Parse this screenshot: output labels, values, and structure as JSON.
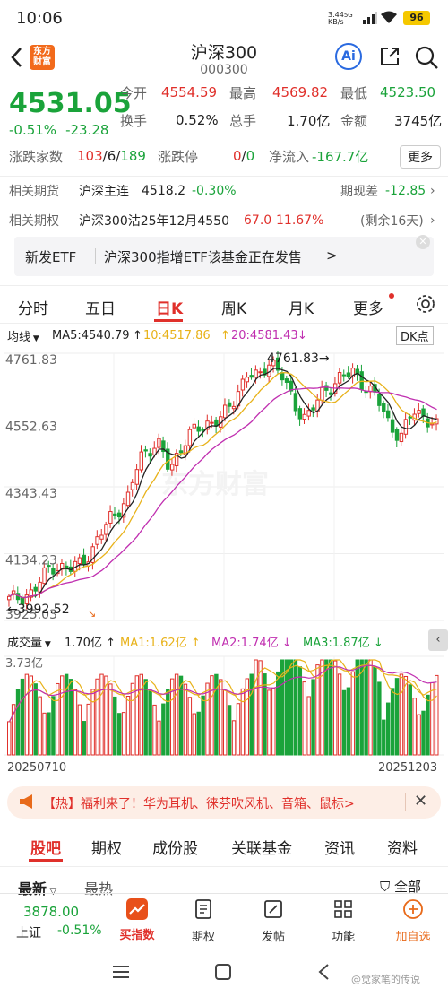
{
  "status": {
    "time": "10:06",
    "net_speed_top": "3.44",
    "net_speed_bottom": "KB/s",
    "net_type": "5G",
    "battery": "96"
  },
  "header": {
    "logo_line1": "东方",
    "logo_line2": "财富",
    "title": "沪深300",
    "code": "000300",
    "ai_label": "Ai"
  },
  "quote": {
    "price": "4531.05",
    "change_pct": "-0.51%",
    "change": "-23.28",
    "open_label": "今开",
    "open": "4554.59",
    "high_label": "最高",
    "high": "4569.82",
    "low_label": "最低",
    "low": "4523.50",
    "turnover_label": "换手",
    "turnover": "0.52%",
    "volume_label": "总手",
    "volume": "1.70亿",
    "amount_label": "金额",
    "amount": "3745亿",
    "breadth_label": "涨跌家数",
    "breadth_up": "103",
    "breadth_flat": "/6/",
    "breadth_down": "189",
    "limit_label": "涨跌停",
    "limit_up": "0",
    "limit_sep": "/",
    "limit_down": "0",
    "inflow_label": "净流入",
    "inflow": "-167.7亿",
    "more_label": "更多"
  },
  "futures": {
    "label": "相关期货",
    "name": "沪深主连",
    "price": "4518.2",
    "pct": "-0.30%",
    "basis_label": "期现差",
    "basis": "-12.85"
  },
  "options": {
    "label": "相关期权",
    "name": "沪深300沽25年12月4550",
    "price": "67.0",
    "pct": "11.67%",
    "remaining": "(剩余16天)"
  },
  "banner": {
    "tag": "新发ETF",
    "text": "沪深300指增ETF该基金正在发售",
    "arrow": ">"
  },
  "chart_tabs": [
    "分时",
    "五日",
    "日K",
    "周K",
    "月K",
    "更多"
  ],
  "active_tab": 2,
  "ma_bar": {
    "type_label": "均线",
    "ma5": "MA5:4540.79",
    "ma10": "10:4517.86",
    "ma20": "20:4581.43",
    "dk_label": "DK点"
  },
  "vol_bar": {
    "type_label": "成交量",
    "vol": "1.70亿",
    "ma1": "MA1:1.62亿",
    "ma2": "MA2:1.74亿",
    "ma3": "MA3:1.87亿"
  },
  "chart_data": {
    "type": "candlestick",
    "price_axis_labels": [
      "4761.83",
      "4552.63",
      "4343.43",
      "4134.23",
      "3925.03"
    ],
    "ylim": [
      3925.03,
      4761.83
    ],
    "max_annotation": "4761.83",
    "min_annotation": "3992.52",
    "volume_axis_label": "3.73亿",
    "x_start": "20250710",
    "x_end": "20251203",
    "watermark": "东方财富",
    "series": [
      {
        "name": "MA5",
        "color": "#222222"
      },
      {
        "name": "MA10",
        "color": "#e8b21a"
      },
      {
        "name": "MA20",
        "color": "#c02fb0"
      }
    ]
  },
  "promo": {
    "text": "【热】福利来了！华为耳机、徕芬吹风机、音箱、鼠标>"
  },
  "content_tabs": [
    "股吧",
    "期权",
    "成份股",
    "关联基金",
    "资讯",
    "资料"
  ],
  "sort_tabs": {
    "latest": "最新",
    "hot": "最热",
    "filter": "全部"
  },
  "bottom_nav": {
    "index_value": "3878.00",
    "index_name": "上证",
    "index_pct": "-0.51%",
    "items": [
      "买指数",
      "期权",
      "发帖",
      "功能",
      "加自选"
    ]
  },
  "watermark_text": "@觉家笔的传说"
}
